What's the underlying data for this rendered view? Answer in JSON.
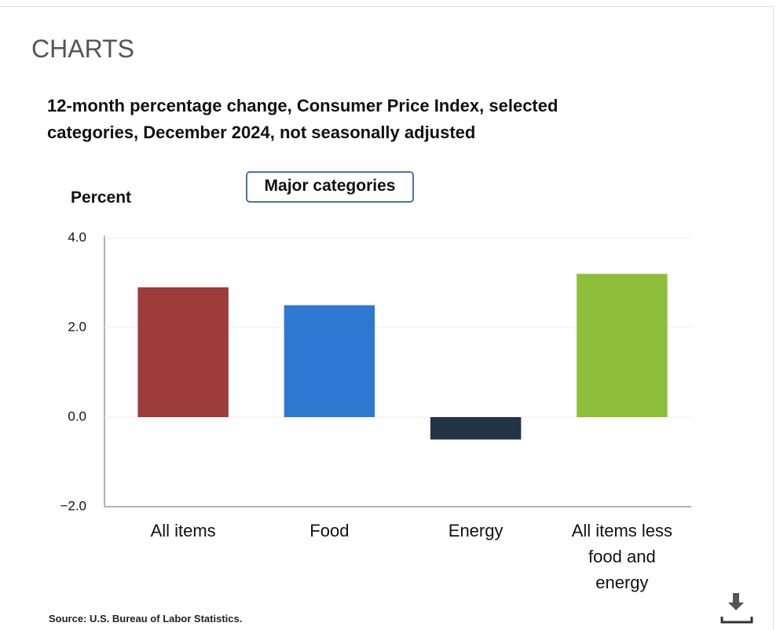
{
  "header": "CHARTS",
  "chart_data": {
    "type": "bar",
    "title": "12-month percentage change, Consumer Price Index, selected categories, December 2024, not seasonally adjusted",
    "selector": "Major categories",
    "ylabel": "Percent",
    "categories": [
      "All items",
      "Food",
      "Energy",
      "All items less food and energy"
    ],
    "values": [
      2.9,
      2.5,
      -0.5,
      3.2
    ],
    "colors": [
      "#9e3b3b",
      "#2f78d2",
      "#243447",
      "#8dbf3a"
    ],
    "ylim": [
      -2,
      4
    ],
    "yticks": [
      {
        "value": -2,
        "label": "−2.0"
      },
      {
        "value": 0,
        "label": "0.0"
      },
      {
        "value": 2,
        "label": "2.0"
      },
      {
        "value": 4,
        "label": "4.0"
      }
    ],
    "grid": true,
    "source": "Source: U.S. Bureau of Labor Statistics."
  }
}
